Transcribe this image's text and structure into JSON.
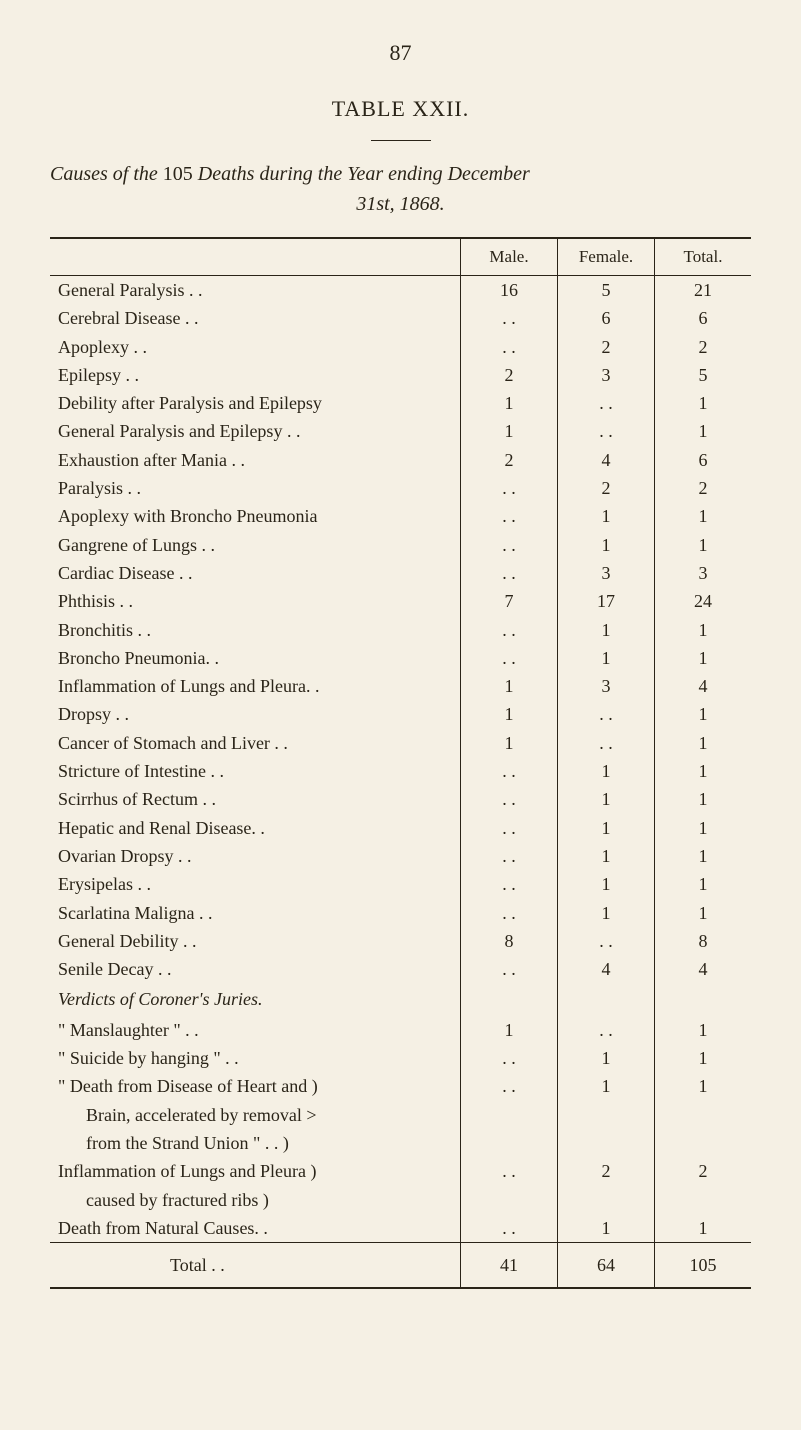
{
  "page_number": "87",
  "table_title": "TABLE XXII.",
  "subtitle_line1_prefix": "Causes of the ",
  "subtitle_line1_em": "105 ",
  "subtitle_line1_mid": "Deaths during the Year ending December",
  "subtitle_line2": "31st, 1868.",
  "headers": {
    "cause": "",
    "male": "Male.",
    "female": "Female.",
    "total": "Total."
  },
  "rows": [
    {
      "cause": "General Paralysis  . .",
      "male": "16",
      "female": "5",
      "total": "21"
    },
    {
      "cause": "Cerebral Disease  . .",
      "male": ". .",
      "female": "6",
      "total": "6"
    },
    {
      "cause": "Apoplexy  . .",
      "male": ". .",
      "female": "2",
      "total": "2"
    },
    {
      "cause": "Epilepsy  . .",
      "male": "2",
      "female": "3",
      "total": "5"
    },
    {
      "cause": "Debility after Paralysis and Epilepsy",
      "male": "1",
      "female": ". .",
      "total": "1"
    },
    {
      "cause": "General Paralysis and Epilepsy  . .",
      "male": "1",
      "female": ". .",
      "total": "1"
    },
    {
      "cause": "Exhaustion after Mania  . .",
      "male": "2",
      "female": "4",
      "total": "6"
    },
    {
      "cause": "Paralysis  . .",
      "male": ". .",
      "female": "2",
      "total": "2"
    },
    {
      "cause": "Apoplexy with Broncho Pneumonia",
      "male": ". .",
      "female": "1",
      "total": "1"
    },
    {
      "cause": "Gangrene of Lungs . .",
      "male": ". .",
      "female": "1",
      "total": "1"
    },
    {
      "cause": "Cardiac Disease  . .",
      "male": ". .",
      "female": "3",
      "total": "3"
    },
    {
      "cause": "Phthisis  . .",
      "male": "7",
      "female": "17",
      "total": "24"
    },
    {
      "cause": "Bronchitis  . .",
      "male": ". .",
      "female": "1",
      "total": "1"
    },
    {
      "cause": "Broncho Pneumonia. .",
      "male": ". .",
      "female": "1",
      "total": "1"
    },
    {
      "cause": "Inflammation of Lungs and Pleura. .",
      "male": "1",
      "female": "3",
      "total": "4"
    },
    {
      "cause": "Dropsy  . .",
      "male": "1",
      "female": ". .",
      "total": "1"
    },
    {
      "cause": "Cancer of Stomach and Liver  . .",
      "male": "1",
      "female": ". .",
      "total": "1"
    },
    {
      "cause": "Stricture of Intestine  . .",
      "male": ". .",
      "female": "1",
      "total": "1"
    },
    {
      "cause": "Scirrhus of Rectum . .",
      "male": ". .",
      "female": "1",
      "total": "1"
    },
    {
      "cause": "Hepatic and Renal Disease. .",
      "male": ". .",
      "female": "1",
      "total": "1"
    },
    {
      "cause": "Ovarian Dropsy  . .",
      "male": ". .",
      "female": "1",
      "total": "1"
    },
    {
      "cause": "Erysipelas  . .",
      "male": ". .",
      "female": "1",
      "total": "1"
    },
    {
      "cause": "Scarlatina Maligna . .",
      "male": ". .",
      "female": "1",
      "total": "1"
    },
    {
      "cause": "General Debility  . .",
      "male": "8",
      "female": ". .",
      "total": "8"
    },
    {
      "cause": "Senile Decay . .",
      "male": ". .",
      "female": "4",
      "total": "4"
    }
  ],
  "verdicts_heading": "Verdicts of Coroner's Juries.",
  "verdict_rows": [
    {
      "cause": "\" Manslaughter \"  . .",
      "male": "1",
      "female": ". .",
      "total": "1"
    },
    {
      "cause": "\" Suicide by hanging \"  . .",
      "male": ". .",
      "female": "1",
      "total": "1"
    }
  ],
  "grouped1": {
    "l1": "\" Death from Disease of Heart and )",
    "l2": "Brain, accelerated by removal >",
    "l3": "from the Strand Union \"  . . )",
    "male": ". .",
    "female": "1",
    "total": "1"
  },
  "grouped2": {
    "l1": "Inflammation of Lungs and Pleura )",
    "l2": "caused by fractured ribs           )",
    "male": ". .",
    "female": "2",
    "total": "2"
  },
  "last_row": {
    "cause": "Death from Natural Causes. .",
    "male": ". .",
    "female": "1",
    "total": "1"
  },
  "total_row": {
    "label": "Total  . .",
    "male": "41",
    "female": "64",
    "total": "105"
  }
}
